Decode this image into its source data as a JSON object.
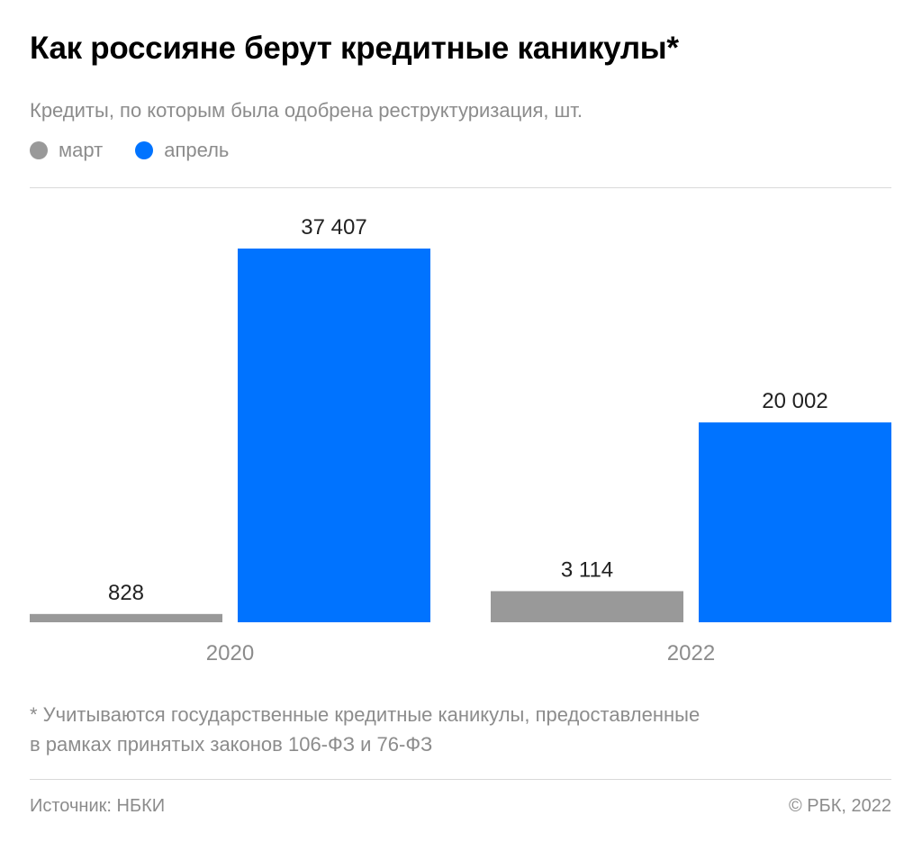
{
  "chart_data": {
    "type": "bar",
    "title": "Как россияне берут кредитные каникулы*",
    "subtitle": "Кредиты, по которым была одобрена реструктуризация, шт.",
    "categories": [
      "2020",
      "2022"
    ],
    "series": [
      {
        "name": "март",
        "color": "#999999",
        "values": [
          828,
          3114
        ],
        "labels": [
          "828",
          "3 114"
        ]
      },
      {
        "name": "апрель",
        "color": "#0073ff",
        "values": [
          37407,
          20002
        ],
        "labels": [
          "37 407",
          "20 002"
        ]
      }
    ],
    "ylim": [
      0,
      37407
    ],
    "grid": false,
    "legend": "top-left",
    "xlabel": "",
    "ylabel": ""
  },
  "footnote": [
    "* Учитываются государственные кредитные каникулы, предоставленные",
    "в рамках принятых законов 106-ФЗ и 76-ФЗ"
  ],
  "source": "Источник: НБКИ",
  "copyright": "© РБК, 2022"
}
